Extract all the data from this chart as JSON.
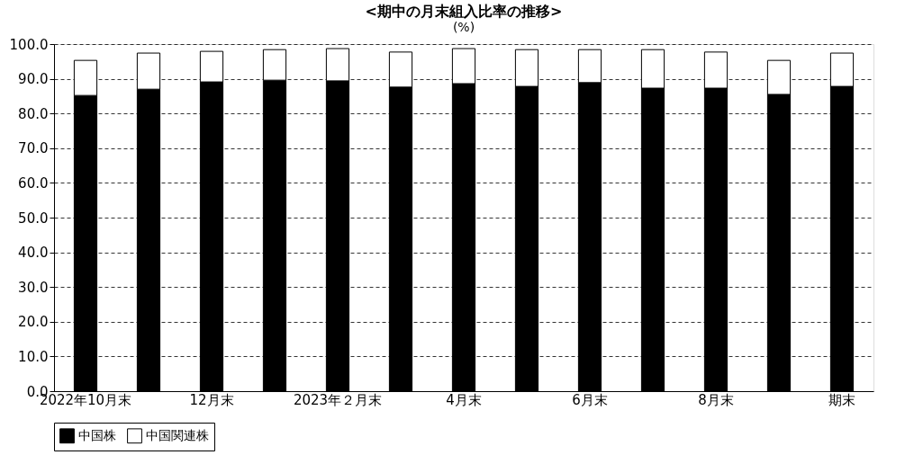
{
  "chart_data": {
    "type": "bar",
    "stacked": true,
    "title": "<期中の月末組入比率の推移>",
    "ylabel": "(%)",
    "categories": [
      "2022年10月末",
      null,
      "12月末",
      null,
      "2023年２月末",
      null,
      "4月末",
      null,
      "6月末",
      null,
      "8月末",
      null,
      "期末"
    ],
    "series": [
      {
        "name": "中国株",
        "color": "#000000",
        "values": [
          85.2,
          87.0,
          89.1,
          89.6,
          89.4,
          87.6,
          88.6,
          87.8,
          88.9,
          87.3,
          87.3,
          85.5,
          87.8
        ]
      },
      {
        "name": "中国関連株",
        "color": "#ffffff",
        "values": [
          10.1,
          10.4,
          8.8,
          8.8,
          9.3,
          10.1,
          10.1,
          10.6,
          9.5,
          11.1,
          10.4,
          9.8,
          9.6
        ]
      }
    ],
    "ylim": [
      0,
      100
    ],
    "yticks": [
      {
        "value": 0,
        "label": "0.0"
      },
      {
        "value": 10,
        "label": "10.0"
      },
      {
        "value": 20,
        "label": "20.0"
      },
      {
        "value": 30,
        "label": "30.0"
      },
      {
        "value": 40,
        "label": "40.0"
      },
      {
        "value": 50,
        "label": "50.0"
      },
      {
        "value": 60,
        "label": "60.0"
      },
      {
        "value": 70,
        "label": "70.0"
      },
      {
        "value": 80,
        "label": "80.0"
      },
      {
        "value": 90,
        "label": "90.0"
      },
      {
        "value": 100,
        "label": "100.0"
      }
    ],
    "grid": "y",
    "legend": "bottom"
  }
}
